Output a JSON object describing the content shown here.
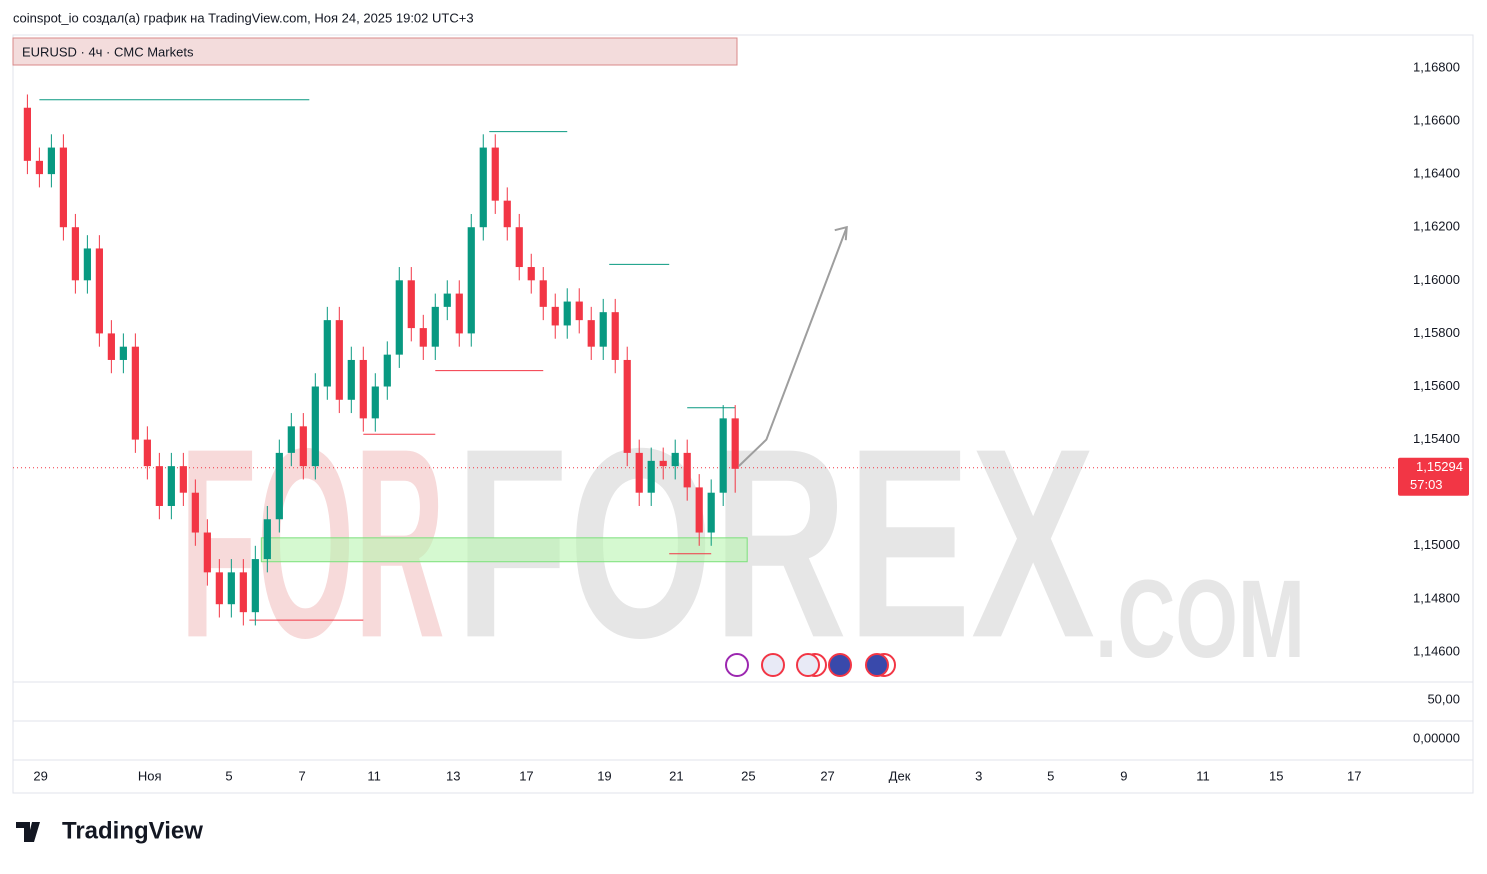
{
  "header": "coinspot_io создал(а) график на TradingView.com, Ноя 24, 2025 19:02 UTC+3",
  "footer": "TradingView",
  "watermark": [
    "FOR",
    "FOREX",
    ".COM"
  ],
  "chart_data": {
    "type": "candlestick",
    "title": "EURUSD · 4ч · CMC Markets",
    "x": [
      0,
      1,
      2,
      3,
      4,
      5,
      6,
      7,
      8,
      9,
      10,
      11,
      12,
      13,
      14,
      15,
      16,
      17,
      18,
      19,
      20,
      21,
      22,
      23,
      24,
      25,
      26,
      27,
      28,
      29,
      30,
      31,
      32,
      33,
      34,
      35,
      36,
      37,
      38,
      39,
      40,
      41,
      42,
      43,
      44,
      45,
      46,
      47,
      48,
      49,
      50,
      51,
      52,
      53,
      54,
      55,
      56,
      57,
      58,
      59
    ],
    "open": [
      1.1665,
      1.1645,
      1.164,
      1.165,
      1.162,
      1.16,
      1.1612,
      1.158,
      1.157,
      1.1575,
      1.154,
      1.153,
      1.1515,
      1.153,
      1.152,
      1.1505,
      1.149,
      1.1478,
      1.149,
      1.1475,
      1.1495,
      1.151,
      1.1535,
      1.1545,
      1.153,
      1.156,
      1.1585,
      1.1555,
      1.157,
      1.1548,
      1.156,
      1.1572,
      1.16,
      1.1582,
      1.1575,
      1.159,
      1.1595,
      1.158,
      1.162,
      1.165,
      1.163,
      1.162,
      1.1605,
      1.16,
      1.159,
      1.1583,
      1.1592,
      1.1585,
      1.1575,
      1.1588,
      1.157,
      1.1535,
      1.152,
      1.1532,
      1.153,
      1.1535,
      1.1522,
      1.1505,
      1.152,
      1.1548
    ],
    "high": [
      1.167,
      1.165,
      1.1655,
      1.1655,
      1.1625,
      1.1617,
      1.1617,
      1.1585,
      1.158,
      1.158,
      1.1545,
      1.1535,
      1.1535,
      1.1535,
      1.1525,
      1.151,
      1.1495,
      1.1495,
      1.1495,
      1.15,
      1.1515,
      1.154,
      1.155,
      1.155,
      1.1565,
      1.159,
      1.159,
      1.1575,
      1.1575,
      1.1565,
      1.1577,
      1.1605,
      1.1605,
      1.1587,
      1.1595,
      1.16,
      1.16,
      1.1625,
      1.1655,
      1.1655,
      1.1635,
      1.1625,
      1.161,
      1.1605,
      1.1595,
      1.1597,
      1.1597,
      1.159,
      1.1593,
      1.1593,
      1.1575,
      1.154,
      1.1537,
      1.1537,
      1.154,
      1.154,
      1.1527,
      1.1525,
      1.1553,
      1.1553
    ],
    "low": [
      1.164,
      1.1635,
      1.1635,
      1.1615,
      1.1595,
      1.1595,
      1.1575,
      1.1565,
      1.1565,
      1.1535,
      1.1525,
      1.151,
      1.151,
      1.1515,
      1.15,
      1.1485,
      1.1473,
      1.1473,
      1.147,
      1.147,
      1.149,
      1.1505,
      1.153,
      1.1525,
      1.1525,
      1.1555,
      1.155,
      1.155,
      1.1543,
      1.1543,
      1.1555,
      1.1567,
      1.1577,
      1.157,
      1.157,
      1.1585,
      1.1575,
      1.1575,
      1.1615,
      1.1625,
      1.1615,
      1.16,
      1.1595,
      1.1585,
      1.1578,
      1.1578,
      1.158,
      1.157,
      1.157,
      1.1565,
      1.153,
      1.1515,
      1.1515,
      1.1525,
      1.1525,
      1.1517,
      1.15,
      1.15,
      1.1515,
      1.152
    ],
    "close": [
      1.1645,
      1.164,
      1.165,
      1.162,
      1.16,
      1.1612,
      1.158,
      1.157,
      1.1575,
      1.154,
      1.153,
      1.1515,
      1.153,
      1.152,
      1.1505,
      1.149,
      1.1478,
      1.149,
      1.1475,
      1.1495,
      1.151,
      1.1535,
      1.1545,
      1.153,
      1.156,
      1.1585,
      1.1555,
      1.157,
      1.1548,
      1.156,
      1.1572,
      1.16,
      1.1582,
      1.1575,
      1.159,
      1.1595,
      1.158,
      1.162,
      1.165,
      1.163,
      1.162,
      1.1605,
      1.16,
      1.159,
      1.1583,
      1.1592,
      1.1585,
      1.1575,
      1.1588,
      1.157,
      1.1535,
      1.152,
      1.1532,
      1.153,
      1.1535,
      1.1522,
      1.1505,
      1.152,
      1.1548,
      1.1529
    ],
    "up_color": "#089981",
    "down_color": "#f23645",
    "xlim": [
      -1.2,
      114
    ],
    "xticks": [
      {
        "value": 1.1,
        "label": "29"
      },
      {
        "value": 10.2,
        "label": "Ноя"
      },
      {
        "value": 16.8,
        "label": "5"
      },
      {
        "value": 22.9,
        "label": "7"
      },
      {
        "value": 28.9,
        "label": "11"
      },
      {
        "value": 35.5,
        "label": "13"
      },
      {
        "value": 41.6,
        "label": "17"
      },
      {
        "value": 48.1,
        "label": "19"
      },
      {
        "value": 54.1,
        "label": "21"
      },
      {
        "value": 60.1,
        "label": "25"
      },
      {
        "value": 66.7,
        "label": "27"
      },
      {
        "value": 72.7,
        "label": "Дек"
      },
      {
        "value": 79.3,
        "label": "3"
      },
      {
        "value": 85.3,
        "label": "5"
      },
      {
        "value": 91.4,
        "label": "9"
      },
      {
        "value": 98,
        "label": "11"
      },
      {
        "value": 104.1,
        "label": "15"
      },
      {
        "value": 110.6,
        "label": "17"
      }
    ],
    "ylim": [
      1.14487,
      1.16924
    ],
    "yticks": [
      {
        "value": 1.168,
        "label": "1,16800"
      },
      {
        "value": 1.166,
        "label": "1,16600"
      },
      {
        "value": 1.164,
        "label": "1,16400"
      },
      {
        "value": 1.162,
        "label": "1,16200"
      },
      {
        "value": 1.16,
        "label": "1,16000"
      },
      {
        "value": 1.158,
        "label": "1,15800"
      },
      {
        "value": 1.156,
        "label": "1,15600"
      },
      {
        "value": 1.154,
        "label": "1,15400"
      },
      {
        "value": 1.15,
        "label": "1,15000"
      },
      {
        "value": 1.148,
        "label": "1,14800"
      },
      {
        "value": 1.146,
        "label": "1,14600"
      }
    ],
    "current_price": {
      "value": 1.15294,
      "label": "1,15294",
      "countdown": "57:03",
      "color": "#f23645"
    },
    "levels": [
      {
        "value": 1.1668,
        "x": [
          1,
          23.5
        ],
        "color": "#089981"
      },
      {
        "value": 1.1656,
        "x": [
          38.5,
          45
        ],
        "color": "#089981"
      },
      {
        "value": 1.1606,
        "x": [
          48.5,
          53.5
        ],
        "color": "#089981"
      },
      {
        "value": 1.1552,
        "x": [
          55,
          59
        ],
        "color": "#089981"
      },
      {
        "value": 1.1472,
        "x": [
          18.5,
          28
        ],
        "color": "#f23645"
      },
      {
        "value": 1.1542,
        "x": [
          28,
          34
        ],
        "color": "#f23645"
      },
      {
        "value": 1.1566,
        "x": [
          34,
          43
        ],
        "color": "#f23645"
      },
      {
        "value": 1.1497,
        "x": [
          53.5,
          57
        ],
        "color": "#f23645"
      }
    ],
    "zone": {
      "x": [
        19.5,
        60
      ],
      "bottom": 1.1494,
      "top": 1.1503,
      "color": "#b9f5b0"
    },
    "arrow": {
      "x": [
        59.3,
        61.6,
        68.3
      ],
      "y": [
        1.153,
        1.154,
        1.162
      ],
      "color": "#9e9e9e"
    },
    "pane_labels": [
      "50,00",
      "0,00000"
    ]
  }
}
